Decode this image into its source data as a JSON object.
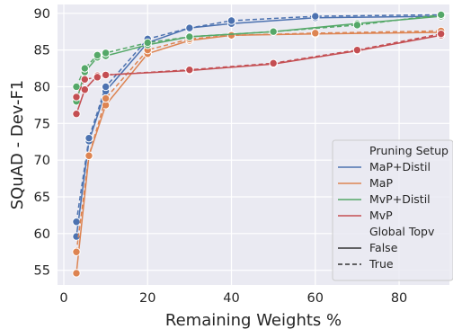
{
  "chart_data": {
    "type": "line",
    "xlabel": "Remaining Weights %",
    "ylabel": "SQuAD - Dev-F1",
    "xlim": [
      -1.5,
      92
    ],
    "ylim": [
      53,
      91.2
    ],
    "xticks": [
      0,
      20,
      40,
      60,
      80
    ],
    "yticks": [
      55,
      60,
      65,
      70,
      75,
      80,
      85,
      90
    ],
    "grid": true,
    "background": "#eaeaf2",
    "legend": {
      "placement": "center-right",
      "hue_title": "Pruning Setup",
      "style_title": "Global Topv",
      "style_entries": [
        {
          "label": "False",
          "dash": "solid"
        },
        {
          "label": "True",
          "dash": "dashed"
        }
      ]
    },
    "series": [
      {
        "name": "MaP+Distil",
        "global_topv": "False",
        "color": "#4c72b0",
        "x": [
          3,
          6,
          10,
          20,
          30,
          40,
          60,
          90
        ],
        "y": [
          59.6,
          72.6,
          79.4,
          86.0,
          88.0,
          88.6,
          89.4,
          89.6
        ]
      },
      {
        "name": "MaP+Distil",
        "global_topv": "True",
        "color": "#4c72b0",
        "x": [
          3,
          6,
          10,
          20,
          30,
          40,
          60,
          90
        ],
        "y": [
          61.6,
          73.0,
          80.0,
          86.5,
          88.0,
          89.0,
          89.6,
          89.8
        ]
      },
      {
        "name": "MaP",
        "global_topv": "False",
        "color": "#dd8452",
        "x": [
          3,
          6,
          10,
          20,
          30,
          40,
          60,
          90
        ],
        "y": [
          54.6,
          70.6,
          77.5,
          84.5,
          86.3,
          87.0,
          87.2,
          87.4
        ]
      },
      {
        "name": "MaP",
        "global_topv": "True",
        "color": "#dd8452",
        "x": [
          3,
          6,
          10,
          20,
          30,
          40,
          60,
          90
        ],
        "y": [
          57.5,
          70.6,
          78.4,
          85.0,
          86.5,
          87.0,
          87.3,
          87.6
        ]
      },
      {
        "name": "MvP+Distil",
        "global_topv": "False",
        "color": "#55a868",
        "x": [
          3,
          5,
          8,
          10,
          20,
          30,
          50,
          70,
          90
        ],
        "y": [
          78.0,
          82.0,
          84.0,
          84.2,
          85.7,
          86.8,
          87.5,
          88.6,
          89.6
        ]
      },
      {
        "name": "MvP+Distil",
        "global_topv": "True",
        "color": "#55a868",
        "x": [
          3,
          5,
          8,
          10,
          20,
          30,
          50,
          70,
          90
        ],
        "y": [
          80.0,
          82.5,
          84.3,
          84.6,
          86.0,
          86.8,
          87.5,
          88.4,
          89.8
        ]
      },
      {
        "name": "MvP",
        "global_topv": "False",
        "color": "#c44e52",
        "x": [
          3,
          5,
          8,
          10,
          30,
          50,
          70,
          90
        ],
        "y": [
          76.3,
          79.6,
          81.5,
          81.6,
          82.2,
          83.1,
          84.9,
          87.0
        ]
      },
      {
        "name": "MvP",
        "global_topv": "True",
        "color": "#c44e52",
        "x": [
          3,
          5,
          8,
          10,
          30,
          50,
          70,
          90
        ],
        "y": [
          78.6,
          81.0,
          81.3,
          81.6,
          82.3,
          83.2,
          85.0,
          87.2
        ]
      }
    ]
  }
}
